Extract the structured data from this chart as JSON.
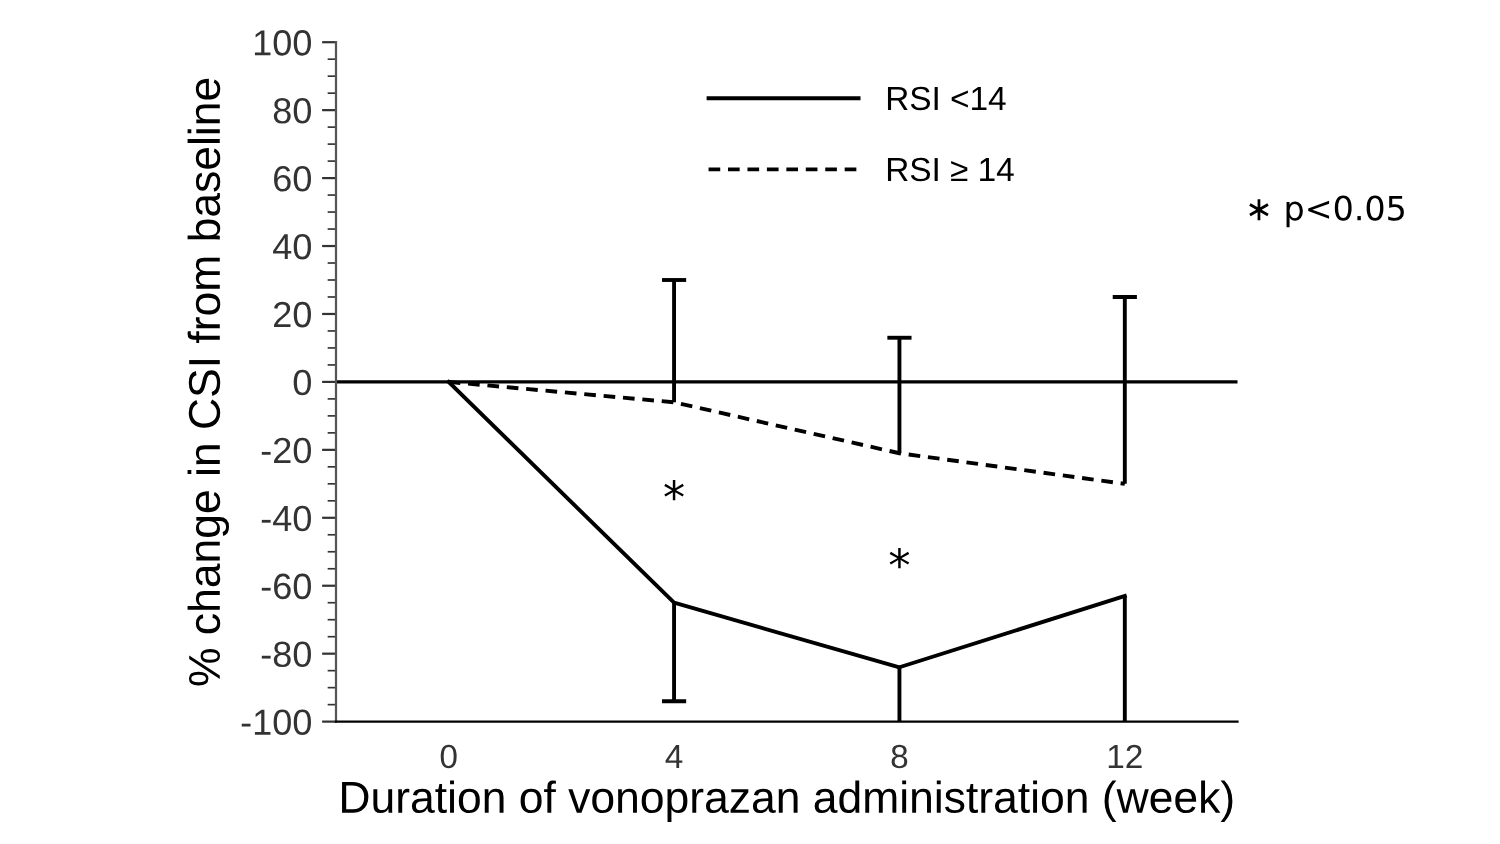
{
  "chart_data": {
    "type": "line",
    "xlabel": "Duration of vonoprazan administration (week)",
    "ylabel": "% change in CSI from baseline",
    "x": [
      0,
      4,
      8,
      12
    ],
    "series": [
      {
        "name": "RSI <14",
        "color": "#000000",
        "line_style": "solid",
        "values": [
          0,
          -65,
          -84,
          -63
        ],
        "errors": [
          null,
          [
            -94,
            -65
          ],
          [
            -100,
            -84
          ],
          [
            -100,
            -63
          ]
        ]
      },
      {
        "name": "RSI ≥ 14",
        "color": "#000000",
        "line_style": "dashed",
        "values": [
          0,
          -6,
          -21,
          -30
        ],
        "errors": [
          null,
          [
            -6,
            30
          ],
          [
            -21,
            13
          ],
          [
            -30,
            25
          ]
        ]
      }
    ],
    "xlim": [
      -2,
      14
    ],
    "xticks": [
      0,
      4,
      8,
      12
    ],
    "ylim": [
      -100,
      100
    ],
    "yticks": [
      100,
      80,
      60,
      40,
      20,
      0,
      -20,
      -40,
      -60,
      -80,
      -100
    ],
    "ref_lines": [
      {
        "axis": "y",
        "value": 0,
        "color": "#000000",
        "line_style": "solid"
      }
    ],
    "annotations": [
      "*",
      "*",
      "∗ p<0.05"
    ],
    "legend": "top",
    "grid": false,
    "marker": "none"
  }
}
